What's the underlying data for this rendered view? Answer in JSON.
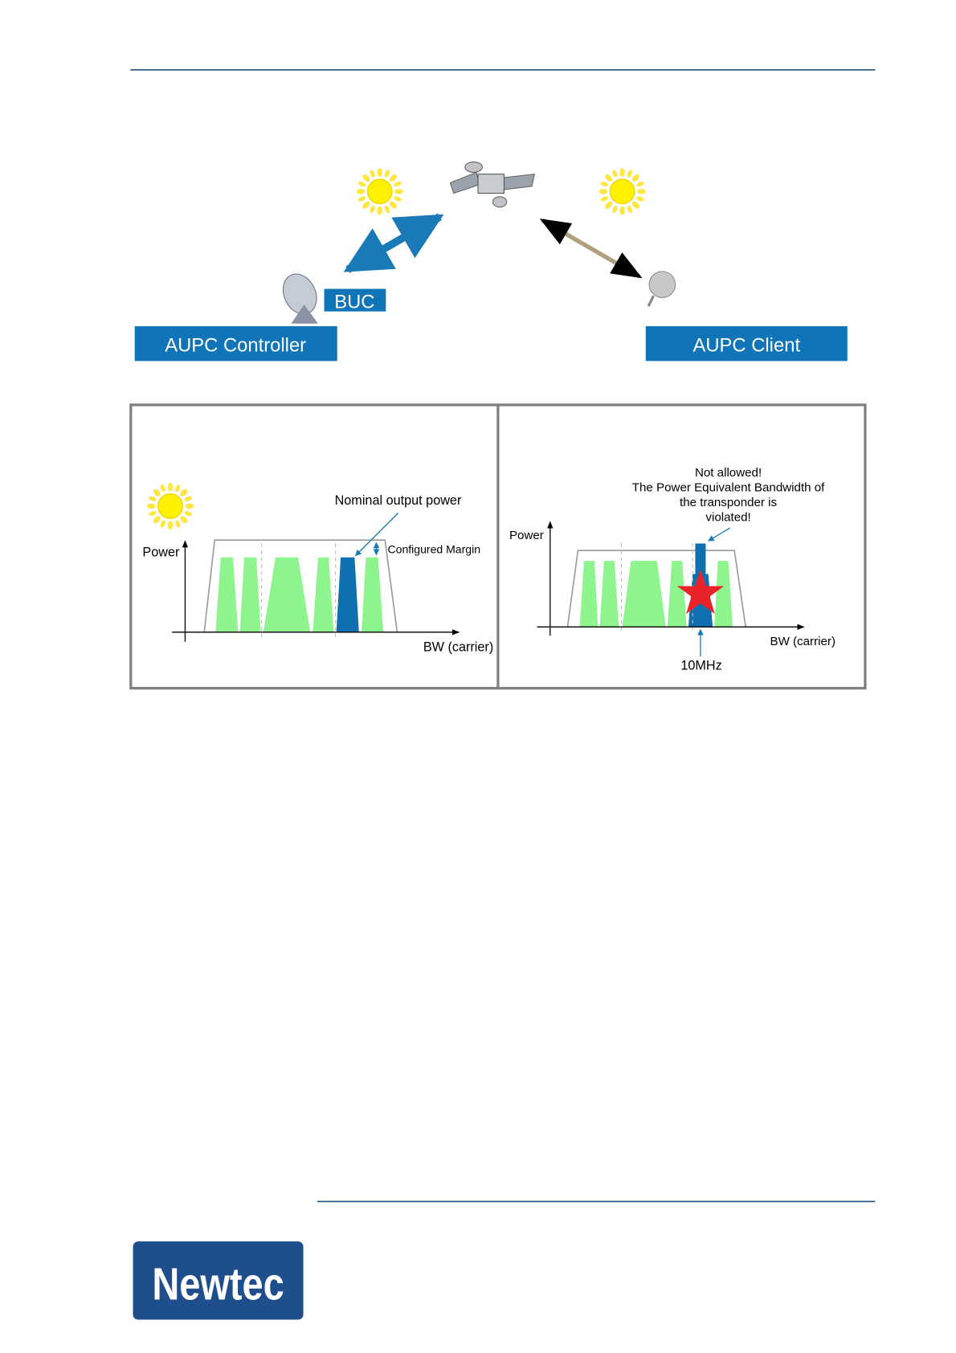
{
  "top_diagram": {
    "buc_label": "BUC",
    "controller_label": "AUPC Controller",
    "client_label": "AUPC Client"
  },
  "left_panel": {
    "y_axis_label": "Power",
    "annotation": "Nominal output power",
    "margin_label": "Configured Margin",
    "x_axis_label": "BW (carrier)"
  },
  "right_panel": {
    "y_axis_label": "Power",
    "annotation_lines": [
      "Not allowed!",
      "The Power Equivalent Bandwidth of",
      "the transponder is",
      "violated!"
    ],
    "x_axis_label": "BW (carrier)",
    "bandwidth_label": "10MHz"
  },
  "footer": {
    "logo": "Newtec"
  }
}
